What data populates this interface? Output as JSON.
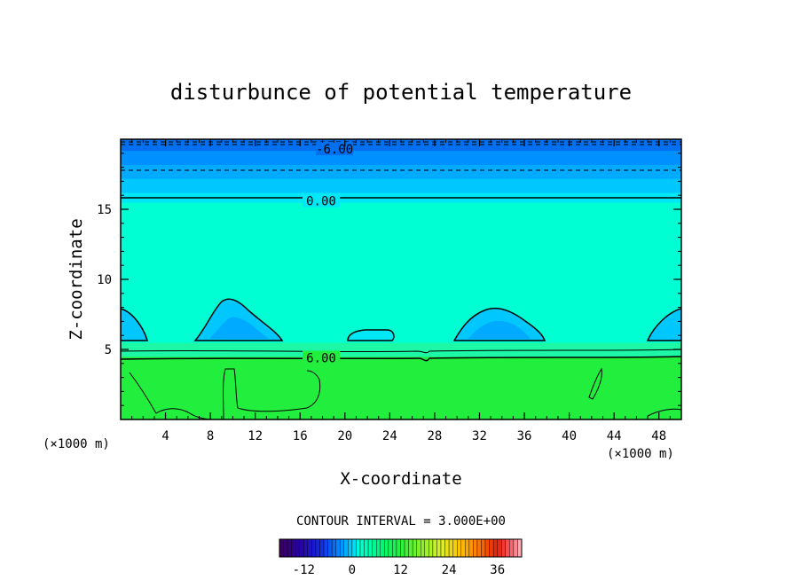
{
  "chart_data": {
    "type": "heatmap",
    "title": "disturbunce of potential temperature",
    "xlabel": "X-coordinate",
    "ylabel": "Z-coordinate",
    "x_unit": "(×1000 m)",
    "z_unit": "(×1000 m)",
    "xlim": [
      0,
      50
    ],
    "ylim": [
      0,
      20
    ],
    "x_ticks": [
      4,
      8,
      12,
      16,
      20,
      24,
      28,
      32,
      36,
      40,
      44,
      48
    ],
    "y_ticks": [
      5,
      10,
      15
    ],
    "contour_interval_text": "CONTOUR INTERVAL = 3.000E+00",
    "contour_labels": [
      {
        "text": "-6.00",
        "x": 19,
        "z": 19.3
      },
      {
        "text": "0.00",
        "x": 17.8,
        "z": 15.6
      },
      {
        "text": "6.00",
        "x": 17.8,
        "z": 4.4
      }
    ],
    "layers": [
      {
        "z": [
          0,
          4.5
        ],
        "value": 9,
        "color": "#22ee3e"
      },
      {
        "z": [
          4.5,
          5.5
        ],
        "value": 4,
        "color": "#1cf8a6"
      },
      {
        "z": [
          5.5,
          15.5
        ],
        "value": 0,
        "color": "#00ffd2"
      },
      {
        "z": [
          15.5,
          16.2
        ],
        "value": -2,
        "color": "#00e8f5"
      },
      {
        "z": [
          16.2,
          17.2
        ],
        "value": -4,
        "color": "#00c8ff"
      },
      {
        "z": [
          17.2,
          18.2
        ],
        "value": -5,
        "color": "#00aaff"
      },
      {
        "z": [
          18.2,
          19.2
        ],
        "value": -6,
        "color": "#0090ff"
      },
      {
        "z": [
          19.2,
          20
        ],
        "value": -8,
        "color": "#0070f0"
      }
    ],
    "colorbar": {
      "range": [
        -18,
        42
      ],
      "tick_values": [
        -12,
        0,
        12,
        24,
        36
      ],
      "tick_labels": [
        "-12",
        "0",
        "12",
        "24",
        "36"
      ]
    }
  }
}
